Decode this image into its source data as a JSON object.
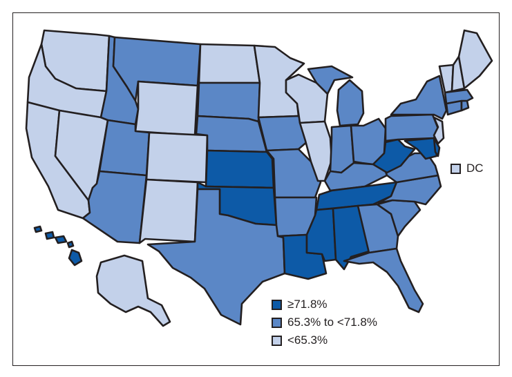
{
  "colors": {
    "high": "#0d5aa7",
    "mid": "#5b87c6",
    "low": "#c3d1ea",
    "border": "#231f20"
  },
  "legend": [
    {
      "key": "high",
      "label": "≥71.8%",
      "color": "#0d5aa7"
    },
    {
      "key": "mid",
      "label": "65.3% to <71.8%",
      "color": "#5b87c6"
    },
    {
      "key": "low",
      "label": "<65.3%",
      "color": "#c3d1ea"
    }
  ],
  "dc": {
    "label": "DC",
    "category": "low"
  },
  "states": {
    "WA": "low",
    "OR": "low",
    "CA": "low",
    "NV": "low",
    "ID": "mid",
    "MT": "mid",
    "WY": "low",
    "UT": "mid",
    "AZ": "mid",
    "CO": "low",
    "NM": "low",
    "ND": "low",
    "SD": "mid",
    "NE": "mid",
    "KS": "high",
    "OK": "high",
    "TX": "mid",
    "MN": "low",
    "IA": "mid",
    "MO": "mid",
    "AR": "mid",
    "LA": "high",
    "WI": "low",
    "IL": "low",
    "MI": "mid",
    "IN": "mid",
    "OH": "mid",
    "KY": "mid",
    "TN": "high",
    "MS": "high",
    "AL": "high",
    "GA": "mid",
    "FL": "mid",
    "SC": "mid",
    "NC": "mid",
    "VA": "mid",
    "WV": "high",
    "MD": "high",
    "DE": "high",
    "PA": "mid",
    "NJ": "low",
    "NY": "mid",
    "CT": "mid",
    "RI": "mid",
    "MA": "mid",
    "VT": "low",
    "NH": "low",
    "ME": "low",
    "AK": "low",
    "HI": "high"
  }
}
